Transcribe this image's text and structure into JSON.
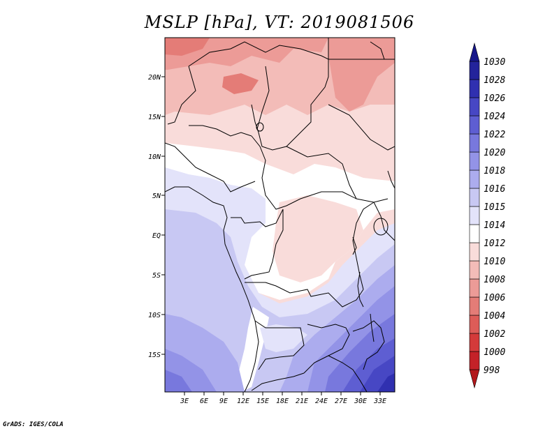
{
  "title": "MSLP [hPa], VT: 2019081506",
  "credit": "GrADS: IGES/COLA",
  "map": {
    "lat_labels": [
      "20N",
      "15N",
      "10N",
      "5N",
      "EQ",
      "5S",
      "10S",
      "15S"
    ],
    "lon_labels": [
      "3E",
      "6E",
      "9E",
      "12E",
      "15E",
      "18E",
      "21E",
      "24E",
      "27E",
      "30E",
      "33E"
    ]
  },
  "colorbar": {
    "levels": [
      "998",
      "1000",
      "1002",
      "1004",
      "1006",
      "1008",
      "1010",
      "1012",
      "1014",
      "1015",
      "1016",
      "1018",
      "1020",
      "1022",
      "1024",
      "1026",
      "1028",
      "1030"
    ],
    "colors": [
      "#b2181b",
      "#c42228",
      "#d43a3a",
      "#dd5c58",
      "#e47c77",
      "#ec9b97",
      "#f3bcb8",
      "#f9dcda",
      "#ffffff",
      "#e3e3fa",
      "#c8c8f3",
      "#acacee",
      "#9393e7",
      "#7878dd",
      "#5e5ed2",
      "#4747c4",
      "#3030b0",
      "#23239b",
      "#16168a"
    ]
  }
}
